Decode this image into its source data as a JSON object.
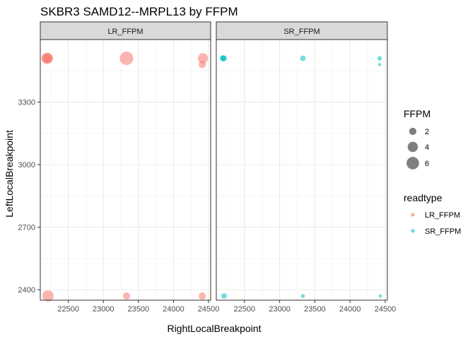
{
  "chart_data": {
    "type": "scatter",
    "title": "SKBR3 SAMD12--MRPL13 by FFPM",
    "xlabel": "RightLocalBreakpoint",
    "ylabel": "LeftLocalBreakpoint",
    "xlim": [
      22100,
      24530
    ],
    "ylim": [
      2350,
      3600
    ],
    "x_ticks": [
      22500,
      23000,
      23500,
      24000,
      24500
    ],
    "x_tick_labels": [
      "22500",
      "23000",
      "23500",
      "24000",
      "24500"
    ],
    "y_ticks": [
      2400,
      2700,
      3000,
      3300
    ],
    "y_tick_labels": [
      "2400",
      "2700",
      "3000",
      "3300"
    ],
    "grid": true,
    "facets": [
      {
        "label": "LR_FFPM",
        "points": [
          {
            "x": 22190,
            "y": 3510,
            "ffpm": 4,
            "readtype": "LR_FFPM"
          },
          {
            "x": 22200,
            "y": 3510,
            "ffpm": 5,
            "readtype": "LR_FFPM"
          },
          {
            "x": 22210,
            "y": 3510,
            "ffpm": 3,
            "readtype": "LR_FFPM"
          },
          {
            "x": 23330,
            "y": 3510,
            "ffpm": 7,
            "readtype": "LR_FFPM"
          },
          {
            "x": 24420,
            "y": 3510,
            "ffpm": 4,
            "readtype": "LR_FFPM"
          },
          {
            "x": 24410,
            "y": 3480,
            "ffpm": 2,
            "readtype": "LR_FFPM"
          },
          {
            "x": 22210,
            "y": 2370,
            "ffpm": 5,
            "readtype": "LR_FFPM"
          },
          {
            "x": 23330,
            "y": 2370,
            "ffpm": 2,
            "readtype": "LR_FFPM"
          },
          {
            "x": 24410,
            "y": 2370,
            "ffpm": 2,
            "readtype": "LR_FFPM"
          }
        ]
      },
      {
        "label": "SR_FFPM",
        "points": [
          {
            "x": 22190,
            "y": 3510,
            "ffpm": 1.2,
            "readtype": "SR_FFPM"
          },
          {
            "x": 22200,
            "y": 3510,
            "ffpm": 1.5,
            "readtype": "SR_FFPM"
          },
          {
            "x": 22210,
            "y": 3510,
            "ffpm": 1.2,
            "readtype": "SR_FFPM"
          },
          {
            "x": 23330,
            "y": 3510,
            "ffpm": 1.2,
            "readtype": "SR_FFPM"
          },
          {
            "x": 24420,
            "y": 3510,
            "ffpm": 0.8,
            "readtype": "SR_FFPM"
          },
          {
            "x": 24420,
            "y": 3480,
            "ffpm": 0.4,
            "readtype": "SR_FFPM"
          },
          {
            "x": 22210,
            "y": 2370,
            "ffpm": 1.2,
            "readtype": "SR_FFPM"
          },
          {
            "x": 23330,
            "y": 2370,
            "ffpm": 0.6,
            "readtype": "SR_FFPM"
          },
          {
            "x": 24430,
            "y": 2370,
            "ffpm": 0.4,
            "readtype": "SR_FFPM"
          }
        ]
      }
    ],
    "legend_size": {
      "title": "FFPM",
      "entries": [
        {
          "label": "2",
          "value": 2
        },
        {
          "label": "4",
          "value": 4
        },
        {
          "label": "6",
          "value": 6
        }
      ]
    },
    "legend_color": {
      "title": "readtype",
      "entries": [
        {
          "label": "LR_FFPM",
          "color": "#F8766D"
        },
        {
          "label": "SR_FFPM",
          "color": "#00BFC4"
        }
      ]
    },
    "legend_placement": "right"
  }
}
